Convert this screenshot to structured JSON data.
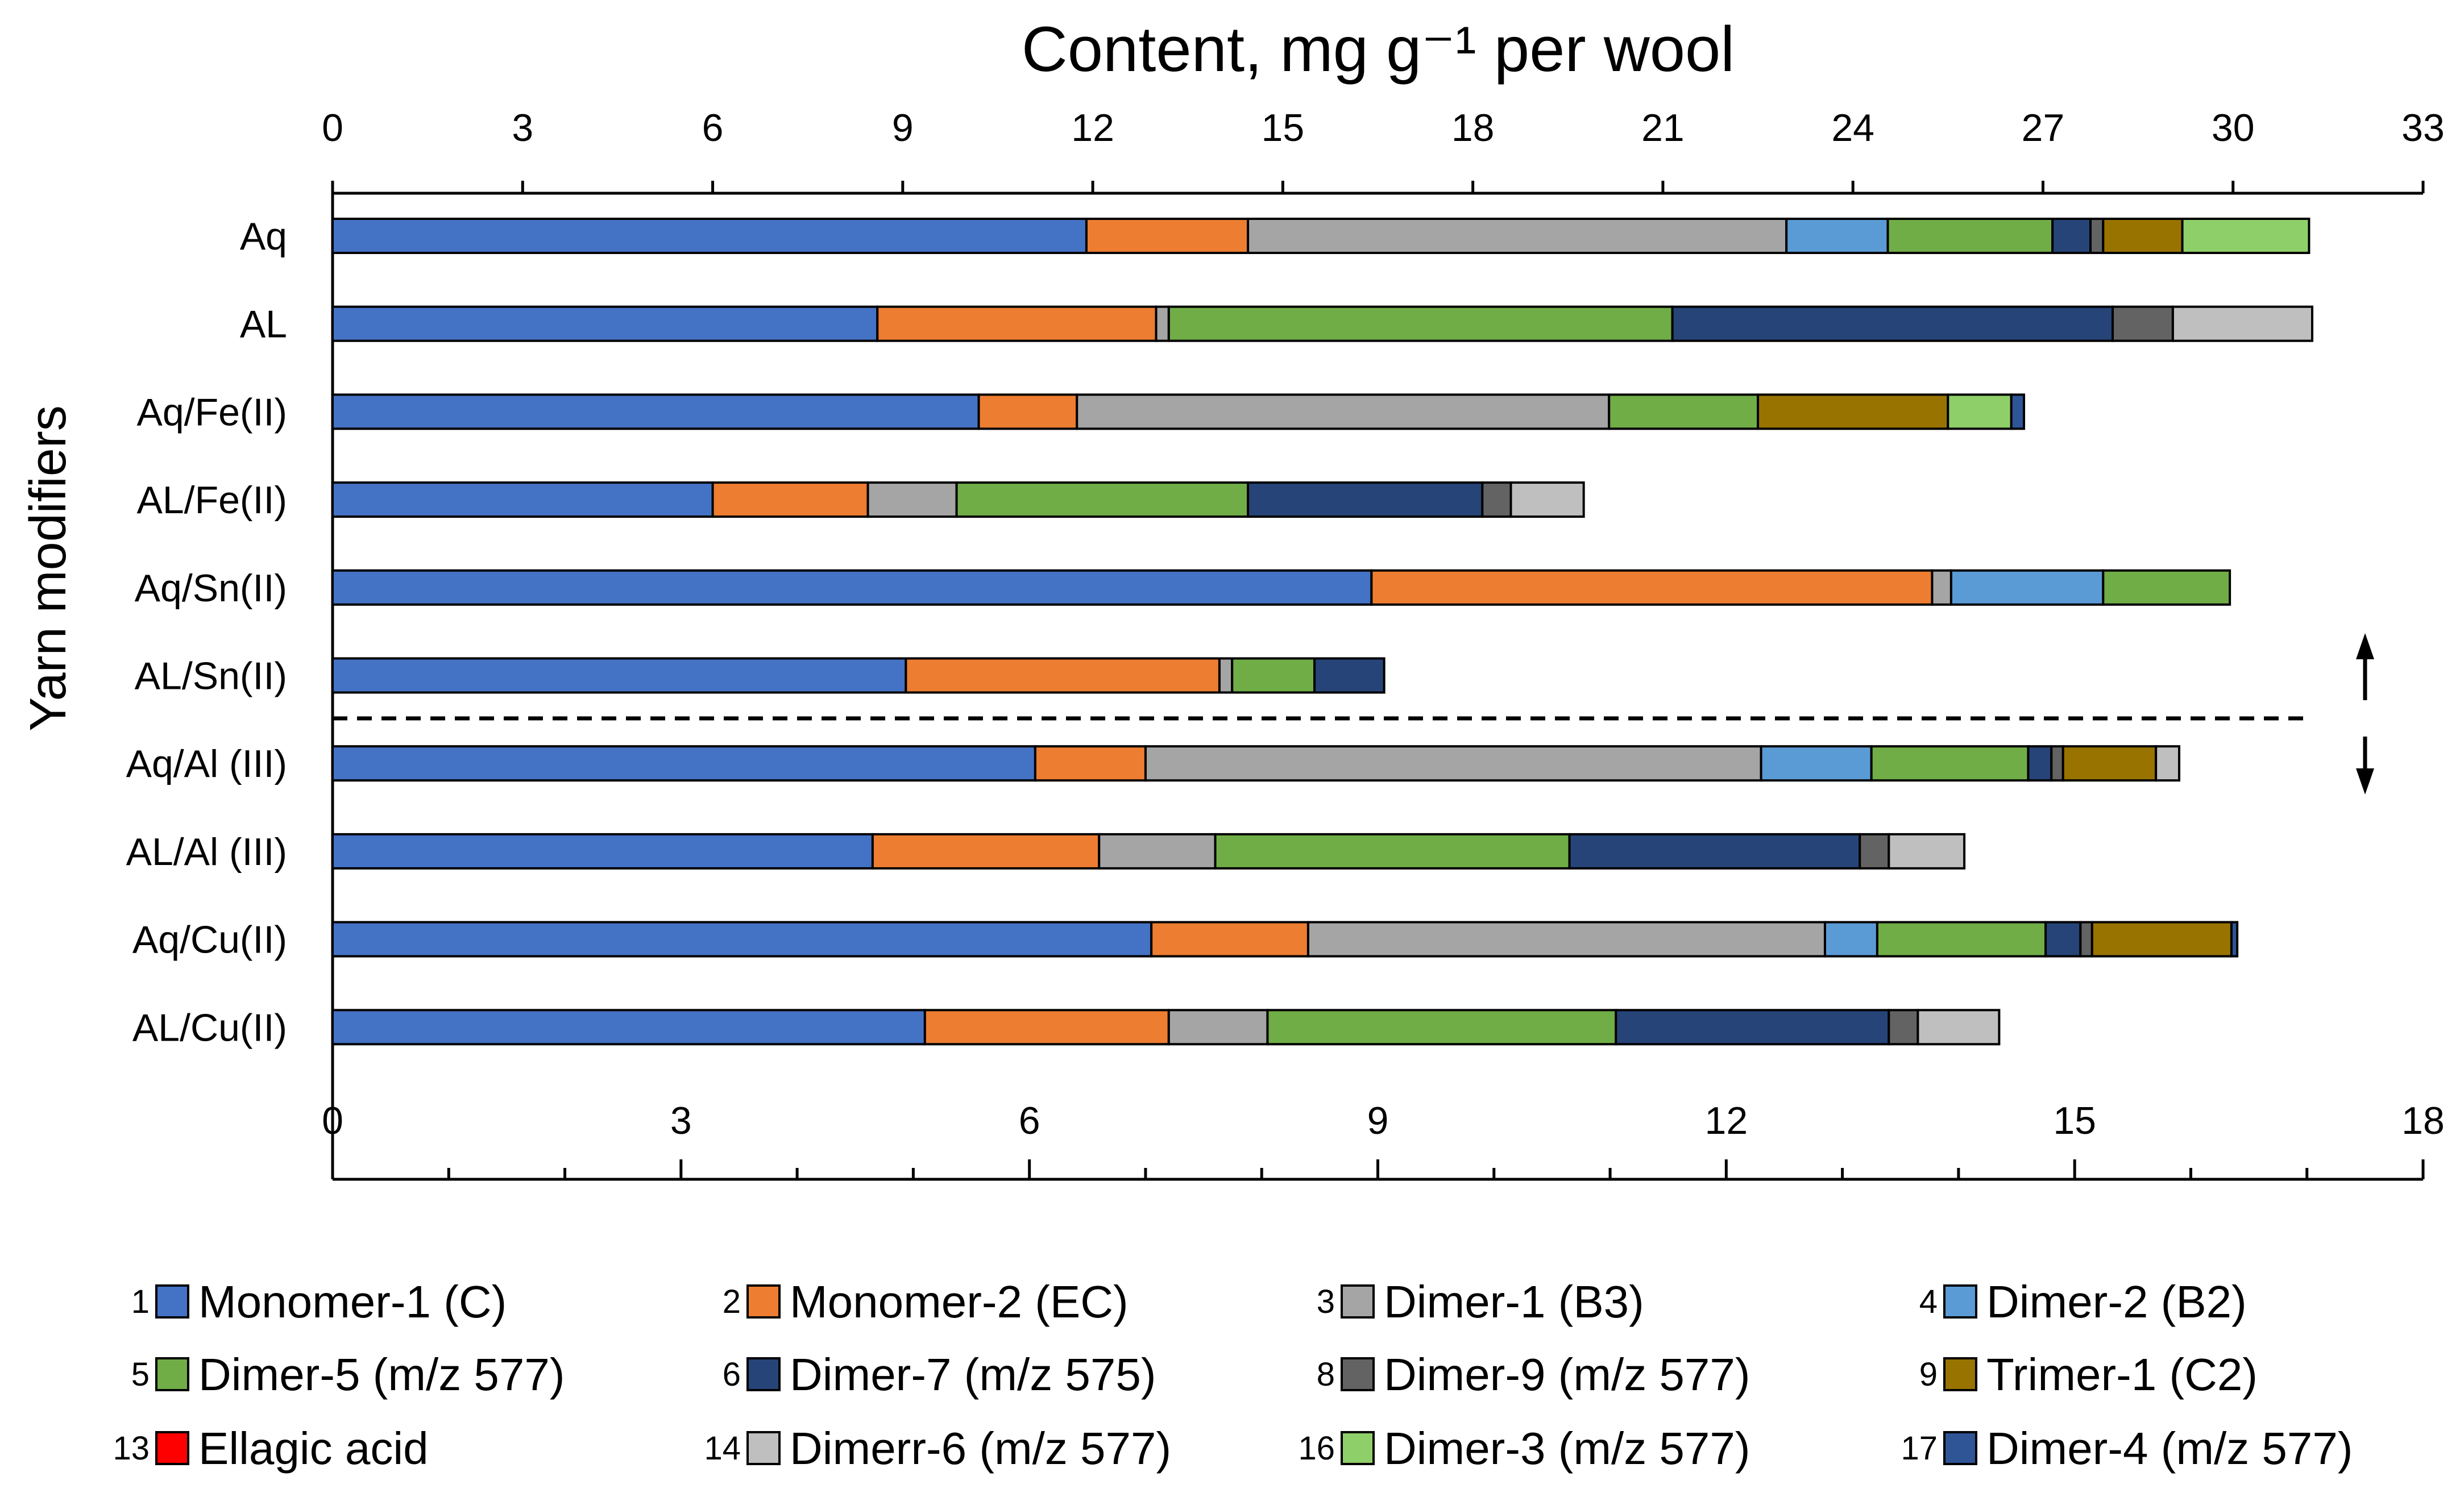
{
  "chart_data": {
    "type": "bar",
    "stacked": true,
    "orientation": "horizontal",
    "title": "Content, mg g⁻¹ per wool",
    "ylabel": "Yarn modifiers",
    "top_axis": {
      "min": 0,
      "max": 33,
      "ticks": [
        "0",
        "3",
        "6",
        "9",
        "12",
        "15",
        "18",
        "21",
        "24",
        "27",
        "30",
        "33"
      ]
    },
    "bottom_axis": {
      "min": 0,
      "max": 18,
      "ticks": [
        "0",
        "3",
        "6",
        "9",
        "12",
        "15",
        "18"
      ]
    },
    "upper_group_axis": "top",
    "lower_group_axis": "bottom",
    "divider_after_category": "AL/Sn(II)",
    "categories": [
      "Aq",
      "AL",
      "Aq/Fe(II)",
      "AL/Fe(II)",
      "Aq/Sn(II)",
      "AL/Sn(II)",
      "Aq/Al (III)",
      "AL/Al (III)",
      "Aq/Cu(II)",
      "AL/Cu(II)"
    ],
    "series": [
      {
        "num": "1",
        "name": "Monomer-1 (C)",
        "color": "#4472C4",
        "values": [
          11.9,
          8.6,
          10.2,
          6.0,
          16.4,
          9.05,
          6.05,
          4.65,
          7.05,
          5.1
        ]
      },
      {
        "num": "2",
        "name": "Monomer-2 (EC)",
        "color": "#ED7D31",
        "values": [
          2.55,
          4.4,
          1.55,
          2.45,
          8.85,
          4.95,
          0.95,
          1.95,
          1.35,
          2.1
        ]
      },
      {
        "num": "3",
        "name": "Dimer-1 (B3)",
        "color": "#A5A5A5",
        "values": [
          8.5,
          0.2,
          8.4,
          1.4,
          0.3,
          0.2,
          5.3,
          1.0,
          4.45,
          0.85
        ]
      },
      {
        "num": "4",
        "name": "Dimer-2 (B2)",
        "color": "#5B9BD5",
        "values": [
          1.6,
          0,
          0,
          0,
          2.4,
          0,
          0.95,
          0,
          0.45,
          0
        ]
      },
      {
        "num": "5",
        "name": "Dimer-5 (m/z 577)",
        "color": "#70AD47",
        "values": [
          2.6,
          7.95,
          2.35,
          4.6,
          2.0,
          1.3,
          1.35,
          3.05,
          1.45,
          3.0
        ]
      },
      {
        "num": "6",
        "name": "Dimer-7 (m/z 575)",
        "color": "#264478",
        "values": [
          0.6,
          6.95,
          0,
          3.7,
          0,
          1.1,
          0.2,
          2.5,
          0.3,
          2.35
        ]
      },
      {
        "num": "8",
        "name": "Dimer-9 (m/z 577)",
        "color": "#636363",
        "values": [
          0.2,
          0.95,
          0,
          0.45,
          0,
          0,
          0.1,
          0.25,
          0.1,
          0.25
        ]
      },
      {
        "num": "9",
        "name": "Trimer-1 (C2)",
        "color": "#997300",
        "values": [
          1.25,
          0,
          3.0,
          0,
          0,
          0,
          0.8,
          0,
          1.2,
          0
        ]
      },
      {
        "num": "13",
        "name": "Ellagic acid",
        "color": "#FF0000",
        "values": [
          0,
          0,
          0,
          0,
          0,
          0,
          0,
          0,
          0,
          0
        ]
      },
      {
        "num": "14",
        "name": "Dimerr-6 (m/z 577)",
        "color": "#BFBFBF",
        "values": [
          0,
          2.2,
          0,
          1.15,
          0,
          0,
          0.2,
          0.65,
          0,
          0.7
        ]
      },
      {
        "num": "16",
        "name": "Dimer-3 (m/z 577)",
        "color": "#8FCF6A",
        "values": [
          2.0,
          0,
          1.0,
          0,
          0,
          0,
          0,
          0,
          0,
          0
        ]
      },
      {
        "num": "17",
        "name": "Dimer-4 (m/z 577)",
        "color": "#2F5597",
        "values": [
          0,
          0,
          0.2,
          0,
          0,
          0,
          0,
          0,
          0.05,
          0
        ]
      }
    ]
  }
}
